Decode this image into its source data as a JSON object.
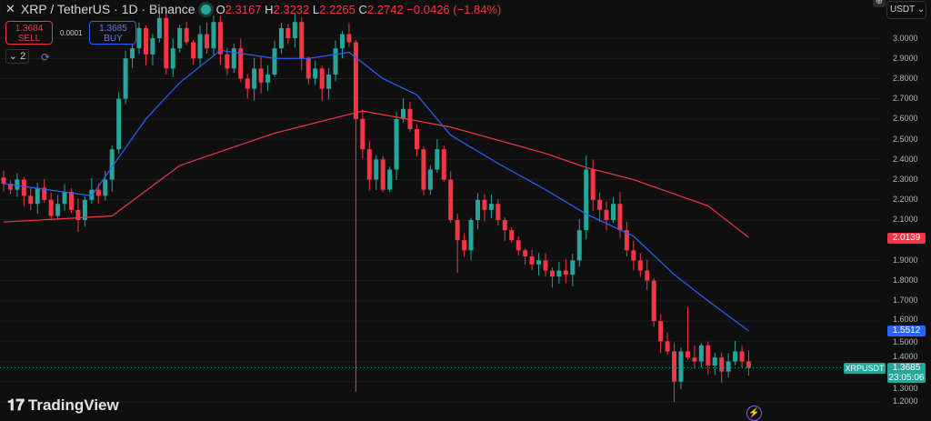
{
  "header": {
    "symbol": "XRP / TetherUS · 1D · Binance",
    "o_label": "O",
    "o": "2.3167",
    "h_label": "H",
    "h": "2.3232",
    "l_label": "L",
    "l": "2.2265",
    "c_label": "C",
    "c": "2.2742",
    "change": "−0.0426 (−1.84%)"
  },
  "trade": {
    "sell_price": "1.3684",
    "sell_label": "SELL",
    "spread": "0.0001",
    "buy_price": "1.3685",
    "buy_label": "BUY"
  },
  "indicators_count": "2",
  "currency": "USDT",
  "brand": "TradingView",
  "price_labels": {
    "ma_slow": "2.0139",
    "ma_fast": "1.5512",
    "symbol": "XRPUSDT",
    "last": "1.3685",
    "countdown": "23:05:06"
  },
  "colors": {
    "up": "#26a69a",
    "down": "#f23645",
    "ma_fast": "#2962ff",
    "ma_slow": "#f23645",
    "background": "#0f0f0f"
  },
  "chart_data": {
    "type": "candlestick",
    "ylim": [
      1.15,
      3.1
    ],
    "yticks": [
      "3.0000",
      "2.9000",
      "2.8000",
      "2.7000",
      "2.6000",
      "2.5000",
      "2.4000",
      "2.3000",
      "2.2000",
      "2.1000",
      "1.9000",
      "1.8000",
      "1.7000",
      "1.6000",
      "1.5000",
      "1.4000",
      "1.3000",
      "1.2000"
    ],
    "grid": true,
    "closes": [
      2.28,
      2.25,
      2.3,
      2.22,
      2.18,
      2.26,
      2.2,
      2.12,
      2.18,
      2.24,
      2.15,
      2.1,
      2.2,
      2.25,
      2.22,
      2.3,
      2.45,
      2.7,
      2.9,
      2.95,
      3.05,
      2.92,
      3.0,
      3.1,
      2.85,
      2.95,
      3.05,
      2.98,
      2.9,
      3.02,
      2.95,
      3.08,
      2.92,
      2.85,
      2.95,
      2.8,
      2.75,
      2.85,
      2.78,
      2.82,
      2.95,
      3.05,
      3.0,
      3.08,
      2.9,
      2.8,
      2.85,
      2.75,
      2.82,
      2.95,
      3.02,
      2.98,
      2.6,
      2.45,
      2.3,
      2.4,
      2.25,
      2.35,
      2.6,
      2.65,
      2.55,
      2.45,
      2.25,
      2.35,
      2.45,
      2.3,
      2.1,
      2.0,
      1.95,
      2.1,
      2.2,
      2.15,
      2.18,
      2.1,
      2.05,
      2.0,
      1.95,
      1.92,
      1.88,
      1.9,
      1.85,
      1.82,
      1.85,
      1.83,
      1.9,
      2.05,
      2.35,
      2.2,
      2.15,
      2.1,
      2.18,
      2.05,
      1.95,
      1.9,
      1.85,
      1.8,
      1.6,
      1.5,
      1.45,
      1.3,
      1.45,
      1.42,
      1.4,
      1.48,
      1.38,
      1.42,
      1.35,
      1.4,
      1.45,
      1.4,
      1.3685
    ],
    "wick_extremes": [
      {
        "i": 52,
        "low": 1.25
      },
      {
        "i": 99,
        "low": 1.2
      },
      {
        "i": 67,
        "low": 1.84
      },
      {
        "i": 86,
        "high": 2.42
      },
      {
        "i": 101,
        "high": 1.67
      }
    ],
    "ma_fast": [
      [
        0,
        2.28
      ],
      [
        13,
        2.22
      ],
      [
        21,
        2.6
      ],
      [
        26,
        2.78
      ],
      [
        32,
        2.94
      ],
      [
        40,
        2.9
      ],
      [
        45,
        2.9
      ],
      [
        51,
        2.93
      ],
      [
        56,
        2.8
      ],
      [
        61,
        2.72
      ],
      [
        66,
        2.52
      ],
      [
        73,
        2.38
      ],
      [
        80,
        2.25
      ],
      [
        86,
        2.13
      ],
      [
        93,
        2.02
      ],
      [
        99,
        1.83
      ],
      [
        104,
        1.7
      ],
      [
        110,
        1.5512
      ]
    ],
    "ma_slow": [
      [
        0,
        2.09
      ],
      [
        16,
        2.12
      ],
      [
        26,
        2.37
      ],
      [
        40,
        2.53
      ],
      [
        53,
        2.64
      ],
      [
        66,
        2.56
      ],
      [
        80,
        2.43
      ],
      [
        86,
        2.36
      ],
      [
        93,
        2.3
      ],
      [
        104,
        2.17
      ],
      [
        110,
        2.0139
      ]
    ],
    "last_price": 1.3685
  }
}
